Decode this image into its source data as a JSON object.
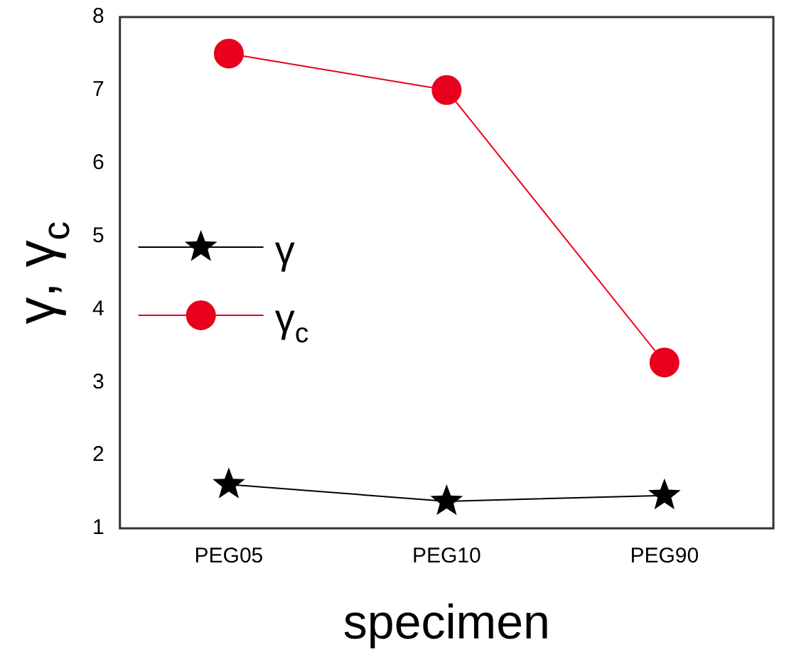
{
  "chart_data": {
    "type": "line",
    "xlabel": "specimen",
    "ylabel": "γ, γ$_{c}$",
    "categories": [
      "PEG05",
      "PEG10",
      "PEG90"
    ],
    "series": [
      {
        "name": "γ",
        "color": "#000000",
        "marker": "star",
        "values": [
          1.6,
          1.37,
          1.45
        ]
      },
      {
        "name": "γ$_{c}$",
        "color": "#e8001c",
        "marker": "circle",
        "values": [
          7.5,
          7.0,
          3.27
        ]
      }
    ],
    "ylim": [
      1,
      8
    ],
    "yticks": [
      1,
      2,
      3,
      4,
      5,
      6,
      7,
      8
    ],
    "grid": false,
    "legend": "left",
    "line_style": "solid"
  }
}
